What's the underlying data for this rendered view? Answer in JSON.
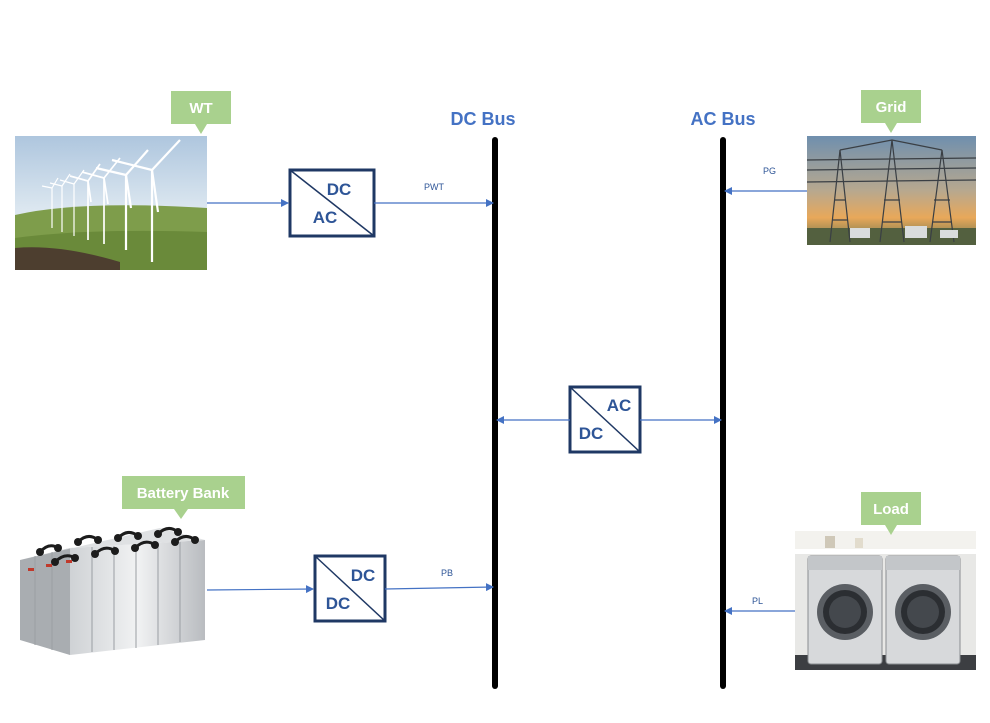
{
  "buses": {
    "dc": "DC Bus",
    "ac": "AC Bus"
  },
  "sources": {
    "wt": "WT",
    "grid": "Grid",
    "battery": "Battery Bank",
    "load": "Load"
  },
  "converters": {
    "wt": {
      "top": "DC",
      "bottom": "AC"
    },
    "mid": {
      "top": "AC",
      "bottom": "DC"
    },
    "battery": {
      "top": "DC",
      "bottom": "DC"
    }
  },
  "flows": {
    "wt": "PWT",
    "grid": "PG",
    "battery": "PB",
    "load": "PL"
  },
  "colors": {
    "bus_title": "#4472c4",
    "converter_border": "#1f3864",
    "converter_text": "#2e5597",
    "arrow": "#4472c4",
    "callout": "#a9d18e"
  }
}
